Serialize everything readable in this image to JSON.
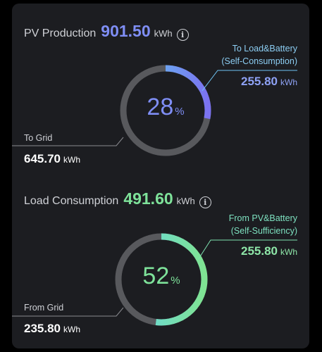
{
  "pv": {
    "title": "PV Production",
    "value": "901.50",
    "unit": "kWh",
    "percent": "28",
    "percent_symbol": "%",
    "fraction": 0.28,
    "right_label_line1": "To Load&Battery",
    "right_label_line2": "(Self-Consumption)",
    "right_value": "255.80",
    "right_unit": "kWh",
    "left_label": "To Grid",
    "left_value": "645.70",
    "left_unit": "kWh",
    "accent": "#7f8ef5"
  },
  "load": {
    "title": "Load Consumption",
    "value": "491.60",
    "unit": "kWh",
    "percent": "52",
    "percent_symbol": "%",
    "fraction": 0.52,
    "right_label_line1": "From PV&Battery",
    "right_label_line2": "(Self-Sufficiency)",
    "right_value": "255.80",
    "right_unit": "kWh",
    "left_label": "From Grid",
    "left_value": "235.80",
    "left_unit": "kWh",
    "accent": "#7ee29a"
  },
  "icons": {
    "info": "info-icon"
  }
}
